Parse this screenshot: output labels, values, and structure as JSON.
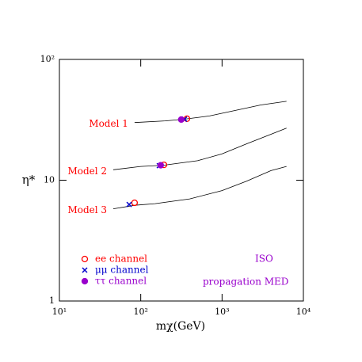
{
  "chart_data": {
    "type": "line",
    "xlabel": "mχ(GeV)",
    "ylabel": "η*",
    "xlog": true,
    "ylog": true,
    "xlim": [
      10,
      10000
    ],
    "ylim": [
      1,
      100
    ],
    "xticks": [
      {
        "value": 10,
        "label": "10¹"
      },
      {
        "value": 100,
        "label": "10²"
      },
      {
        "value": 1000,
        "label": "10³"
      },
      {
        "value": 10000,
        "label": "10⁴"
      }
    ],
    "yticks": [
      {
        "value": 1,
        "label": "1"
      },
      {
        "value": 10,
        "label": "10"
      },
      {
        "value": 100,
        "label": "10²"
      }
    ],
    "series": [
      {
        "name": "Model 1",
        "color": "#000000",
        "label_color": "#ff0000",
        "x": [
          84,
          200,
          340,
          700,
          1500,
          3000,
          6200
        ],
        "values": [
          30,
          31,
          32,
          34,
          38,
          42,
          45
        ]
      },
      {
        "name": "Model 2",
        "color": "#000000",
        "label_color": "#ff0000",
        "x": [
          46,
          100,
          190,
          500,
          1000,
          2000,
          4000,
          6200
        ],
        "values": [
          12.2,
          13,
          13.3,
          14.5,
          16.5,
          20,
          24,
          27
        ]
      },
      {
        "name": "Model 3",
        "color": "#000000",
        "label_color": "#ff0000",
        "x": [
          46,
          84,
          150,
          400,
          1000,
          2000,
          4000,
          6200
        ],
        "values": [
          5.8,
          6.2,
          6.4,
          7,
          8.2,
          9.8,
          12,
          13
        ]
      }
    ],
    "markers": [
      {
        "name": "ee channel",
        "color": "#ff0000",
        "marker": "open-circle",
        "x": [
          370,
          193,
          84
        ],
        "values": [
          32.3,
          13.4,
          6.5
        ]
      },
      {
        "name": "μμ channel",
        "color": "#0000cc",
        "marker": "cross",
        "x": [
          345,
          169,
          72
        ],
        "values": [
          32,
          13.2,
          6.3
        ]
      },
      {
        "name": "ττ channel",
        "color": "#9900cc",
        "marker": "filled-circle",
        "x": [
          315,
          176
        ],
        "values": [
          31.8,
          13.3
        ]
      }
    ],
    "annotations": [
      "ISO",
      "propagation MED"
    ]
  }
}
